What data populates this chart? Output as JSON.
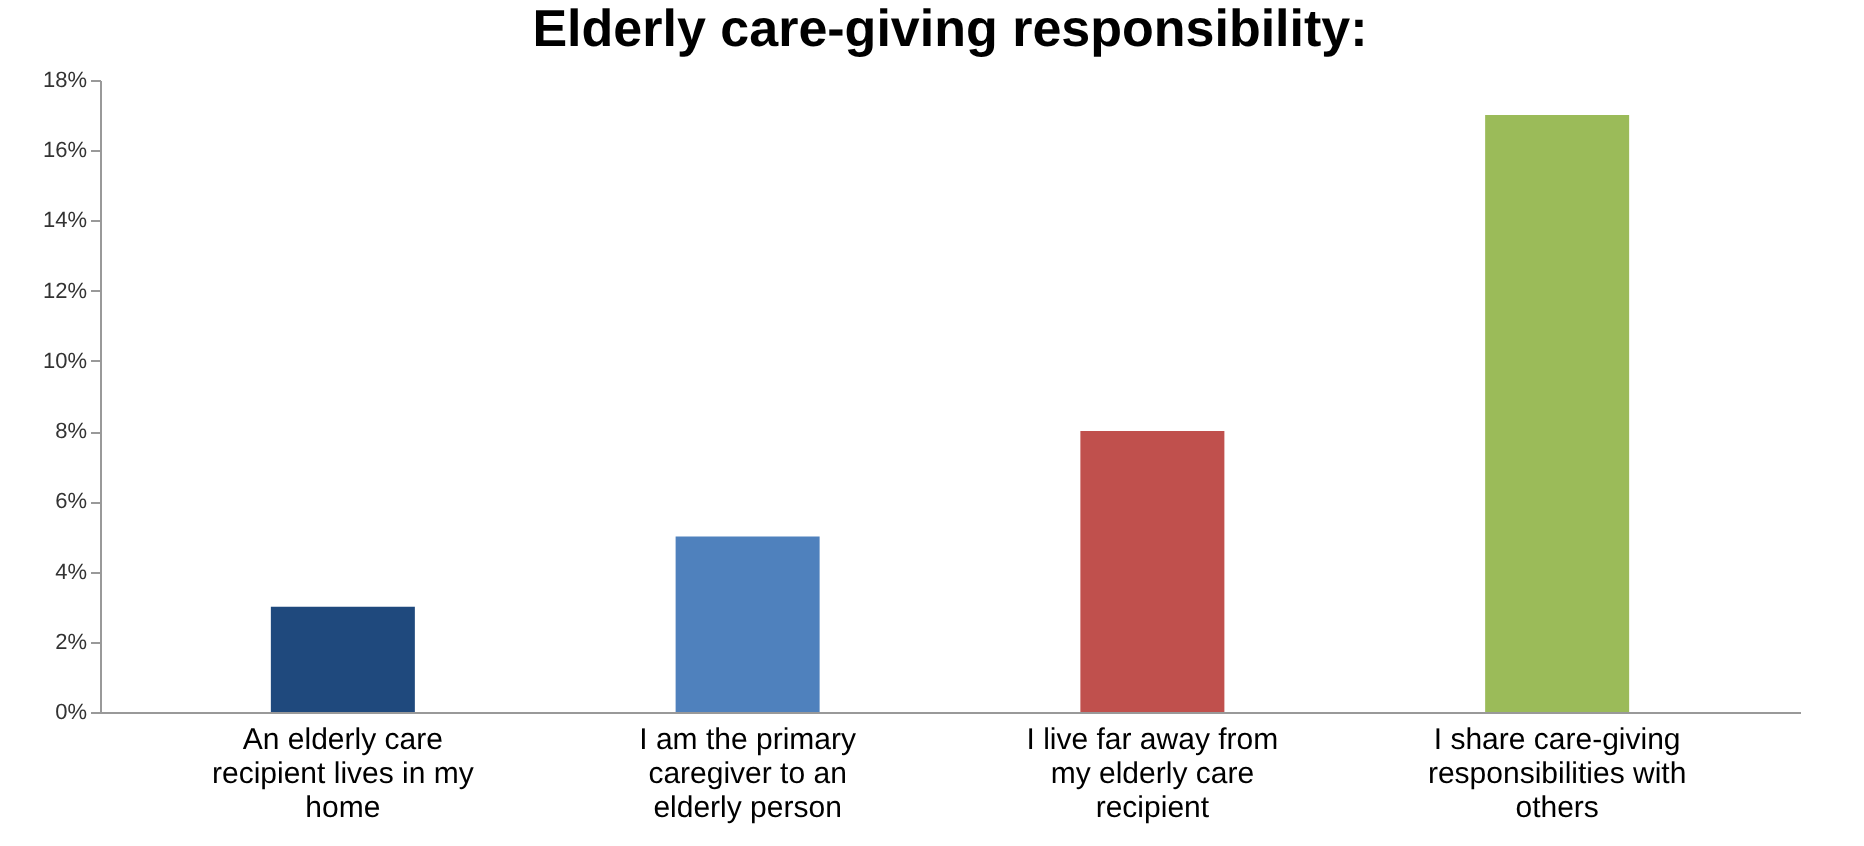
{
  "chart_data": {
    "type": "bar",
    "title": "Elderly care-giving responsibility:",
    "categories": [
      "An elderly care recipient lives in my home",
      "I am the primary caregiver to an elderly person",
      "I live far away from my elderly care recipient",
      "I share care-giving responsibilities with others"
    ],
    "values": [
      3,
      5,
      8,
      17
    ],
    "colors": [
      "#1f497d",
      "#4f81bd",
      "#c0504d",
      "#9bbb59"
    ],
    "ylim": [
      0,
      18
    ],
    "yticks": [
      {
        "value": 0,
        "label": "0%"
      },
      {
        "value": 2,
        "label": "2%"
      },
      {
        "value": 4,
        "label": "4%"
      },
      {
        "value": 6,
        "label": "6%"
      },
      {
        "value": 8,
        "label": "8%"
      },
      {
        "value": 10,
        "label": "10%"
      },
      {
        "value": 12,
        "label": "12%"
      },
      {
        "value": 14,
        "label": "14%"
      },
      {
        "value": 16,
        "label": "16%"
      },
      {
        "value": 18,
        "label": "18%"
      }
    ],
    "grid": false,
    "legend": false
  }
}
